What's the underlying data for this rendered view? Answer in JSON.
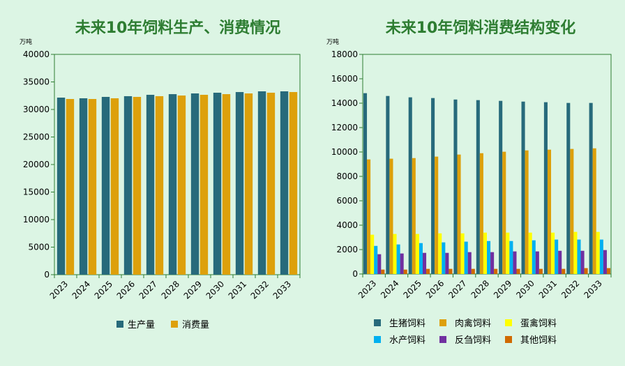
{
  "chart_data": [
    {
      "type": "bar",
      "title": "未来10年饲料生产、消费情况",
      "unit": "万吨",
      "categories": [
        "2023",
        "2024",
        "2025",
        "2026",
        "2027",
        "2028",
        "2029",
        "2030",
        "2031",
        "2032",
        "2033"
      ],
      "ylim": [
        0,
        40000
      ],
      "yticks": [
        0,
        5000,
        10000,
        15000,
        20000,
        25000,
        30000,
        35000,
        40000
      ],
      "legend_position": "bottom",
      "series": [
        {
          "name": "生产量",
          "color": "#276a7b",
          "values": [
            32150,
            32030,
            32280,
            32410,
            32660,
            32780,
            32910,
            33040,
            33160,
            33290,
            33290
          ]
        },
        {
          "name": "消费量",
          "color": "#dda00b",
          "values": [
            31900,
            31900,
            32030,
            32280,
            32410,
            32530,
            32660,
            32780,
            32910,
            33040,
            33160
          ]
        }
      ]
    },
    {
      "type": "bar",
      "title": "未来10年饲料消费结构变化",
      "unit": "万吨",
      "categories": [
        "2023",
        "2024",
        "2025",
        "2026",
        "2027",
        "2028",
        "2029",
        "2030",
        "2031",
        "2032",
        "2033"
      ],
      "ylim": [
        0,
        18000
      ],
      "yticks": [
        0,
        2000,
        4000,
        6000,
        8000,
        10000,
        12000,
        14000,
        16000,
        18000
      ],
      "legend_position": "bottom",
      "series": [
        {
          "name": "生猪饲料",
          "color": "#276a7b",
          "values": [
            14820,
            14590,
            14480,
            14420,
            14300,
            14250,
            14190,
            14130,
            14080,
            14020,
            14020
          ]
        },
        {
          "name": "肉禽饲料",
          "color": "#dda00b",
          "values": [
            9390,
            9450,
            9500,
            9620,
            9790,
            9900,
            10020,
            10130,
            10190,
            10250,
            10300
          ]
        },
        {
          "name": "蛋禽饲料",
          "color": "#ffff00",
          "values": [
            3220,
            3280,
            3280,
            3330,
            3330,
            3390,
            3390,
            3390,
            3390,
            3450,
            3450
          ]
        },
        {
          "name": "水产饲料",
          "color": "#00b0f0",
          "values": [
            2300,
            2420,
            2530,
            2590,
            2650,
            2700,
            2700,
            2760,
            2820,
            2820,
            2820
          ]
        },
        {
          "name": "反刍饲料",
          "color": "#7030a0",
          "values": [
            1620,
            1680,
            1730,
            1730,
            1790,
            1790,
            1850,
            1850,
            1900,
            1900,
            1960
          ]
        },
        {
          "name": "其他饲料",
          "color": "#d06a00",
          "values": [
            360,
            360,
            420,
            420,
            420,
            420,
            420,
            420,
            420,
            480,
            480
          ]
        }
      ]
    }
  ]
}
